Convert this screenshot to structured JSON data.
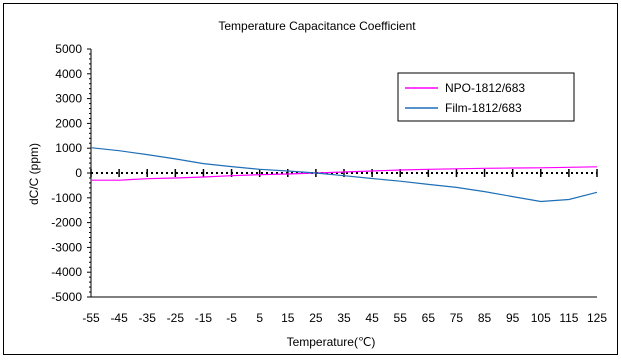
{
  "chart_data": {
    "type": "line",
    "title": "Temperature Capacitance Coefficient",
    "xlabel": "Temperature(℃)",
    "ylabel": "dC/C (ppm)",
    "x": [
      -55,
      -45,
      -35,
      -25,
      -15,
      -5,
      5,
      15,
      25,
      35,
      45,
      55,
      65,
      75,
      85,
      95,
      105,
      115,
      125
    ],
    "xlim": [
      -55,
      125
    ],
    "ylim": [
      -5000,
      5000
    ],
    "yticks": [
      5000,
      4000,
      3000,
      2000,
      1000,
      0,
      -1000,
      -2000,
      -3000,
      -4000,
      -5000
    ],
    "grid": false,
    "legend_position": "top-right",
    "zero_reference": {
      "y": 0,
      "color": "#000000",
      "style": "dotted",
      "marker": "plus"
    },
    "series": [
      {
        "name": "NPO-1812/683",
        "color": "#ff00ff",
        "values": [
          -290,
          -290,
          -230,
          -200,
          -160,
          -110,
          -70,
          -40,
          0,
          40,
          80,
          120,
          150,
          170,
          190,
          200,
          210,
          230,
          250
        ]
      },
      {
        "name": "Film-1812/683",
        "color": "#1f6fb7",
        "values": [
          1020,
          900,
          740,
          570,
          380,
          260,
          150,
          80,
          0,
          -110,
          -220,
          -330,
          -460,
          -580,
          -750,
          -950,
          -1150,
          -1070,
          -780
        ]
      }
    ]
  }
}
